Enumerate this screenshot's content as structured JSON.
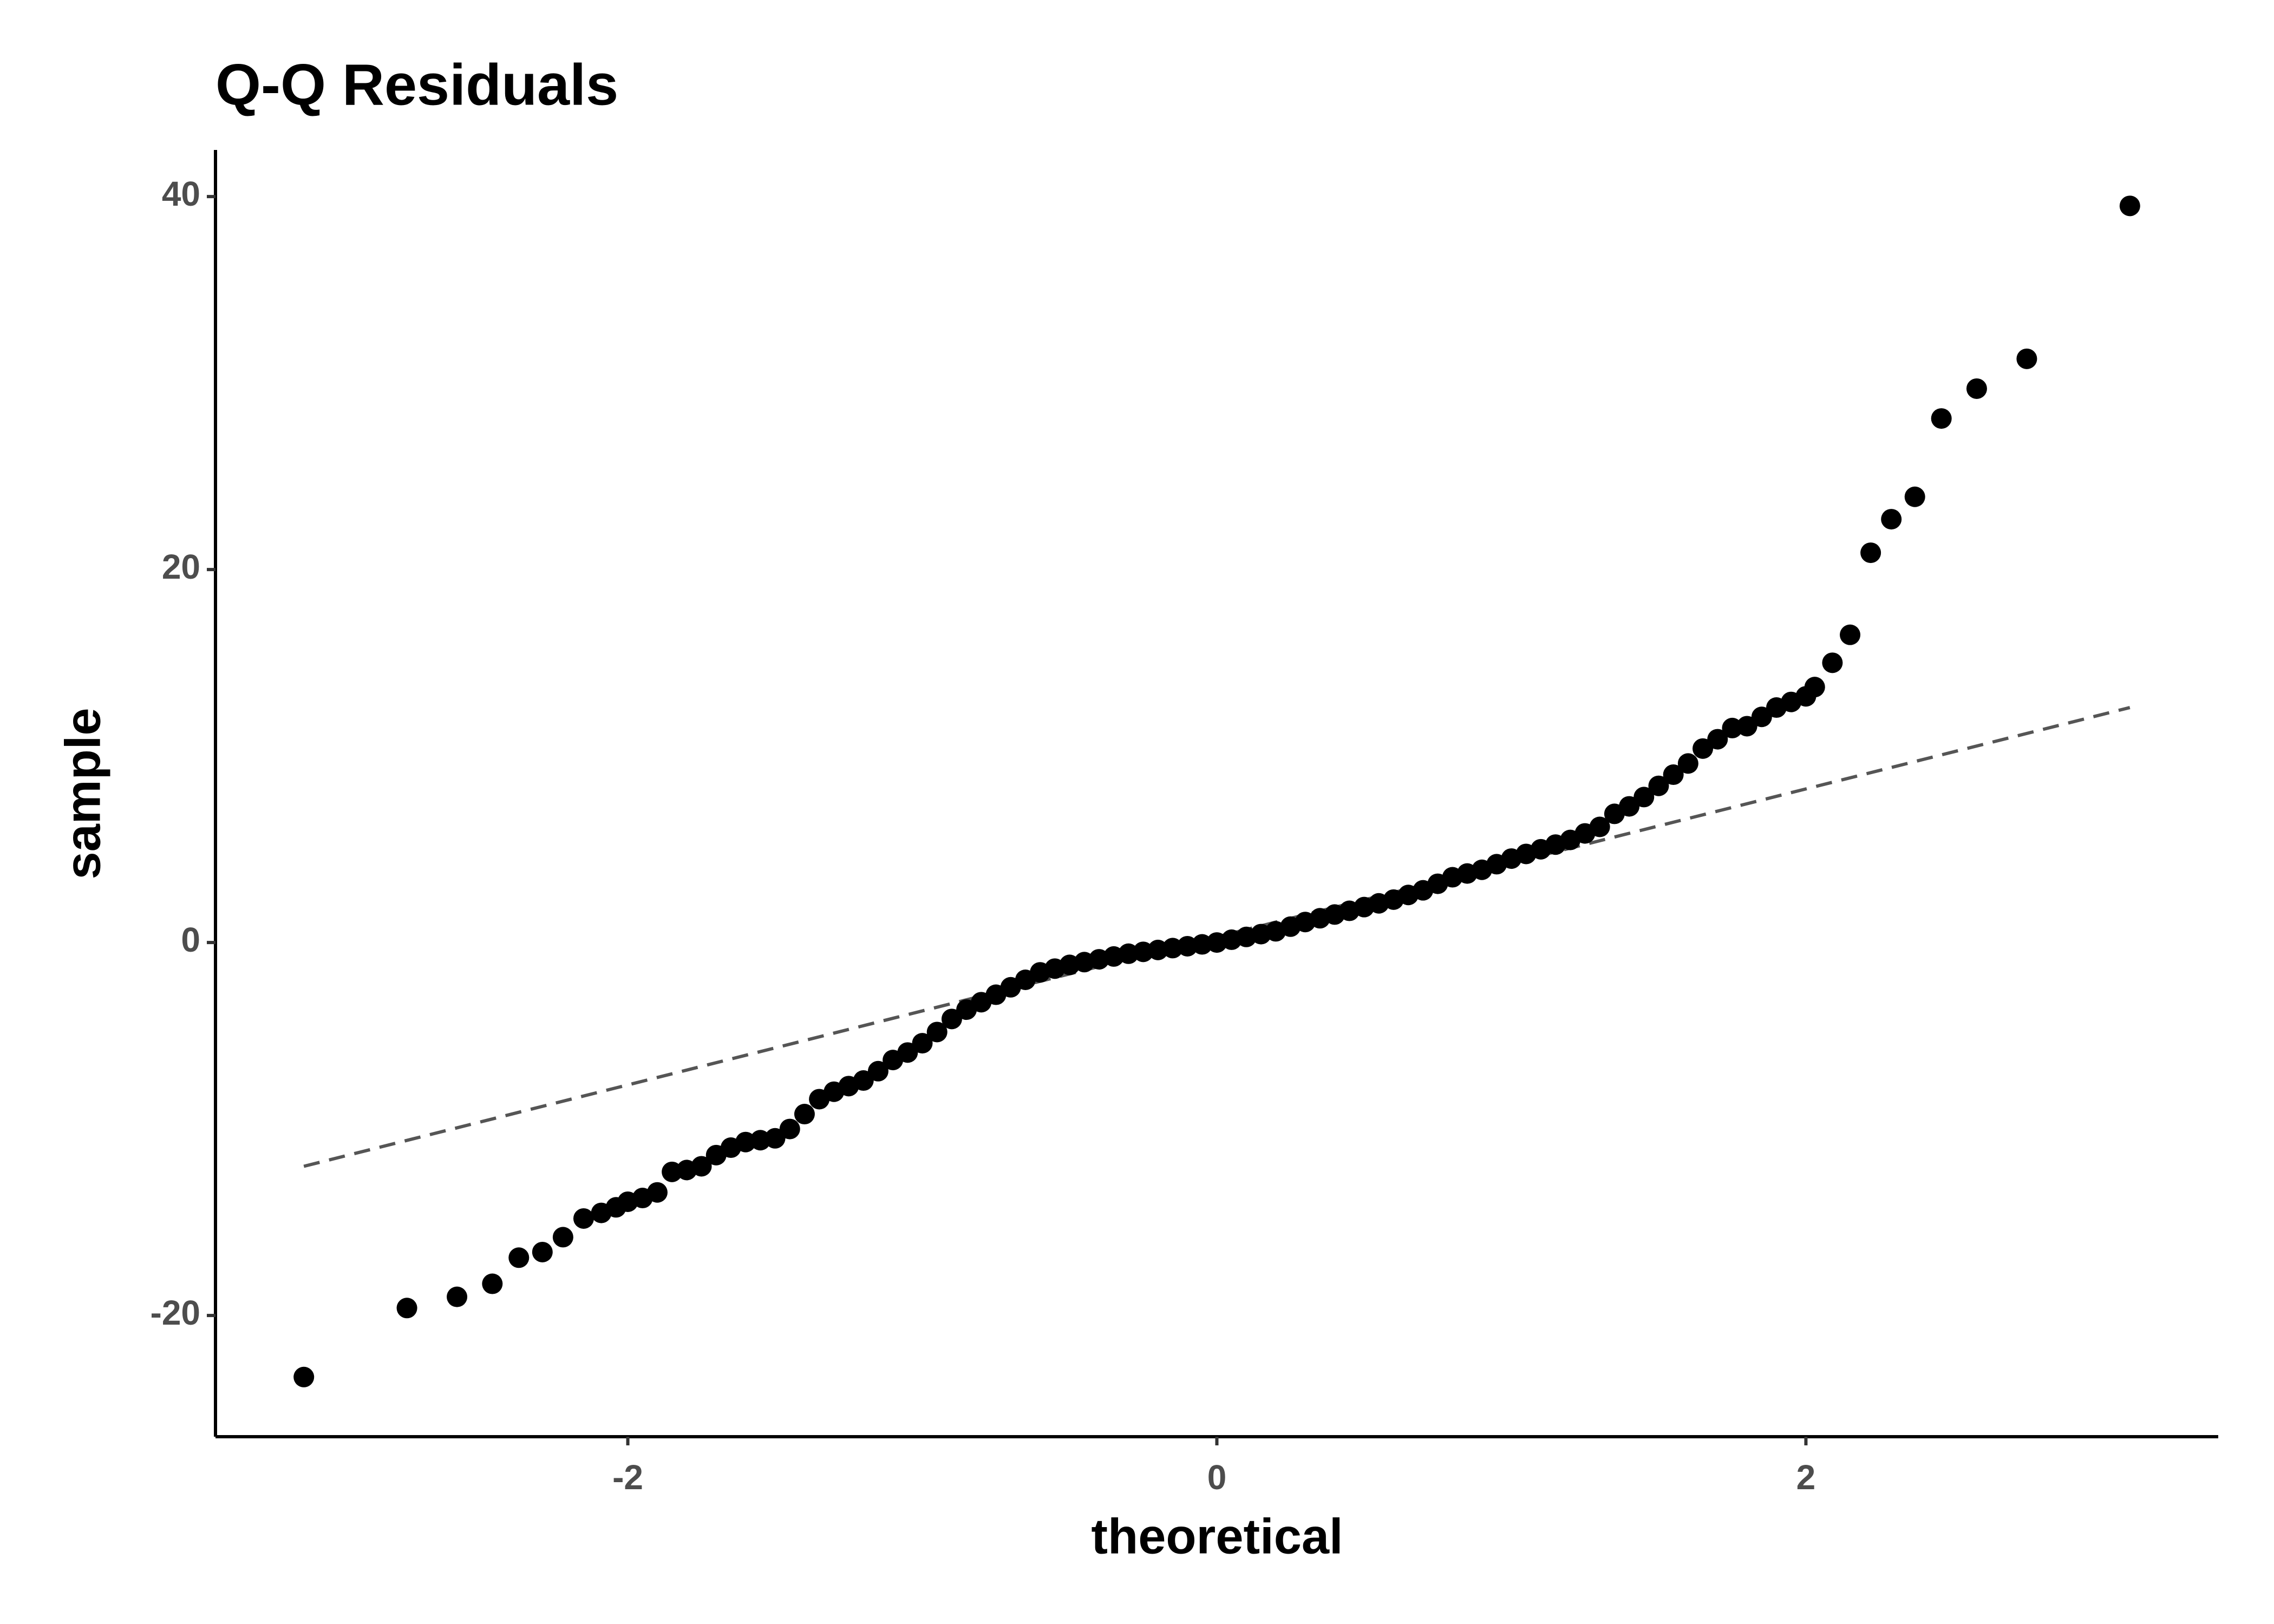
{
  "chart_data": {
    "type": "scatter",
    "title": "Q-Q Residuals",
    "x_label": "theoretical",
    "y_label": "sample",
    "color": "#000000",
    "grid": false,
    "xlim": [
      -3.4,
      3.4
    ],
    "xticks": [
      -2,
      0,
      2
    ],
    "ylim": [
      -26.5,
      42.5
    ],
    "yticks": [
      -20,
      0,
      20,
      40
    ],
    "reference_line": {
      "x": [
        -3.1,
        3.1
      ],
      "y": [
        -12,
        12.6
      ],
      "color": "#555555"
    },
    "x": [
      -3.1,
      -2.75,
      -2.58,
      -2.46,
      -2.37,
      -2.29,
      -2.22,
      -2.15,
      -2.09,
      -2.04,
      -2.0,
      -1.95,
      -1.9,
      -1.85,
      -1.8,
      -1.75,
      -1.7,
      -1.65,
      -1.6,
      -1.55,
      -1.5,
      -1.45,
      -1.4,
      -1.35,
      -1.3,
      -1.25,
      -1.2,
      -1.15,
      -1.1,
      -1.05,
      -1.0,
      -0.95,
      -0.9,
      -0.85,
      -0.8,
      -0.75,
      -0.7,
      -0.65,
      -0.6,
      -0.55,
      -0.5,
      -0.45,
      -0.4,
      -0.35,
      -0.3,
      -0.25,
      -0.2,
      -0.15,
      -0.1,
      -0.05,
      0,
      0.05,
      0.1,
      0.15,
      0.2,
      0.25,
      0.3,
      0.35,
      0.4,
      0.45,
      0.5,
      0.55,
      0.6,
      0.65,
      0.7,
      0.75,
      0.8,
      0.85,
      0.9,
      0.95,
      1.0,
      1.05,
      1.1,
      1.15,
      1.2,
      1.25,
      1.3,
      1.35,
      1.4,
      1.45,
      1.5,
      1.55,
      1.6,
      1.65,
      1.7,
      1.75,
      1.8,
      1.85,
      1.9,
      1.95,
      2.0,
      2.03,
      2.09,
      2.15,
      2.22,
      2.29,
      2.37,
      2.46,
      2.58,
      2.75,
      3.1
    ],
    "values": [
      -23.3,
      -19.6,
      -19.0,
      -18.3,
      -16.9,
      -16.6,
      -15.8,
      -14.8,
      -14.5,
      -14.2,
      -13.9,
      -13.7,
      -13.4,
      -12.3,
      -12.2,
      -12.0,
      -11.4,
      -11.0,
      -10.7,
      -10.6,
      -10.5,
      -10.0,
      -9.2,
      -8.4,
      -8.0,
      -7.7,
      -7.4,
      -6.9,
      -6.3,
      -5.9,
      -5.4,
      -4.8,
      -4.1,
      -3.6,
      -3.2,
      -2.8,
      -2.4,
      -2.0,
      -1.6,
      -1.4,
      -1.2,
      -1.05,
      -0.9,
      -0.75,
      -0.6,
      -0.5,
      -0.4,
      -0.3,
      -0.2,
      -0.1,
      0,
      0.15,
      0.3,
      0.45,
      0.6,
      0.85,
      1.1,
      1.3,
      1.5,
      1.7,
      1.9,
      2.1,
      2.3,
      2.55,
      2.8,
      3.15,
      3.5,
      3.7,
      3.9,
      4.2,
      4.5,
      4.75,
      5.0,
      5.25,
      5.5,
      5.85,
      6.2,
      6.9,
      7.3,
      7.8,
      8.4,
      9.0,
      9.6,
      10.4,
      10.9,
      11.5,
      11.6,
      12.1,
      12.6,
      12.9,
      13.2,
      13.7,
      15.0,
      16.5,
      20.9,
      22.7,
      23.9,
      28.1,
      29.7,
      31.3,
      39.5
    ]
  }
}
